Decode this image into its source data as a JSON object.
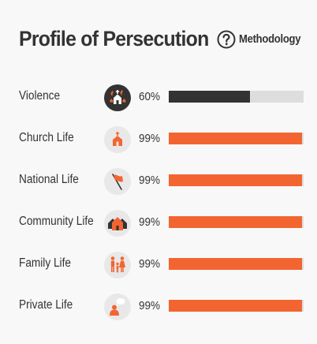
{
  "header": {
    "title": "Profile of Persecution",
    "methodology_label": "Methodology",
    "methodology_icon": "question-circle-icon"
  },
  "colors": {
    "accent": "#f26531",
    "dark": "#333333",
    "track": "#dddddd"
  },
  "rows": [
    {
      "label": "Violence",
      "percent_text": "60%",
      "value": 60,
      "icon": "violence-church-fire-icon",
      "highlight": true
    },
    {
      "label": "Church Life",
      "percent_text": "99%",
      "value": 99,
      "icon": "church-icon",
      "highlight": false
    },
    {
      "label": "National Life",
      "percent_text": "99%",
      "value": 99,
      "icon": "flag-icon",
      "highlight": false
    },
    {
      "label": "Community Life",
      "percent_text": "99%",
      "value": 99,
      "icon": "houses-icon",
      "highlight": false
    },
    {
      "label": "Family Life",
      "percent_text": "99%",
      "value": 99,
      "icon": "family-icon",
      "highlight": false
    },
    {
      "label": "Private Life",
      "percent_text": "99%",
      "value": 99,
      "icon": "person-thought-icon",
      "highlight": false
    }
  ]
}
